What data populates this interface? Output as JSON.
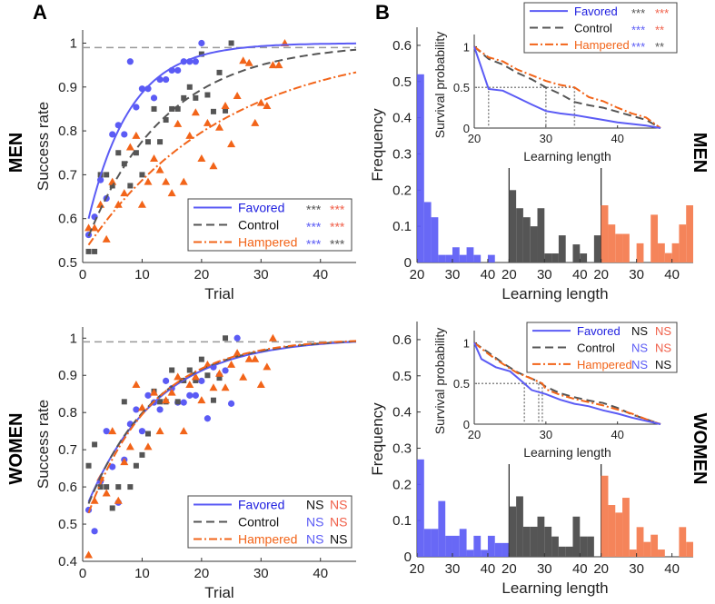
{
  "colors": {
    "favored": "#5b5bf5",
    "favored_text": "#2020e0",
    "control": "#555555",
    "hampered": "#f26419",
    "hampered_hist": "#f5845a",
    "ref_line": "#999999",
    "sig_red": "#f0604a",
    "sig_gray": "#555555"
  },
  "labels": {
    "panel_a": "A",
    "panel_b": "B",
    "men": "MEN",
    "women": "WOMEN"
  },
  "chart_data": [
    {
      "id": "men-success",
      "type": "scatter",
      "title": "",
      "xlabel": "Trial",
      "ylabel": "Success rate",
      "xlim": [
        0,
        46
      ],
      "ylim": [
        0.5,
        1.03
      ],
      "xticks": [
        "0",
        "10",
        "20",
        "30",
        "40"
      ],
      "yticks": [
        "0.5",
        "0.6",
        "0.7",
        "0.8",
        "0.9",
        "1"
      ],
      "reference_line": 0.99,
      "legend_position": "bottom-right",
      "legend": [
        {
          "name": "Favored",
          "sig": [
            "***",
            "***"
          ],
          "sig_colors": [
            "control",
            "hampered"
          ]
        },
        {
          "name": "Control",
          "sig": [
            "***",
            "***"
          ],
          "sig_colors": [
            "favored",
            "hampered"
          ]
        },
        {
          "name": "Hampered",
          "sig": [
            "***",
            "***"
          ],
          "sig_colors": [
            "favored",
            "control"
          ]
        }
      ],
      "series": [
        {
          "name": "Favored",
          "marker": "circle",
          "x": [
            1,
            2,
            3,
            4,
            5,
            6,
            7,
            8,
            9,
            10,
            11,
            12,
            13,
            14,
            15,
            16,
            17,
            18,
            19,
            20
          ],
          "y": [
            0.563,
            0.604,
            0.688,
            0.646,
            0.792,
            0.813,
            0.792,
            0.958,
            0.854,
            0.896,
            0.896,
            0.875,
            0.917,
            0.917,
            0.938,
            0.938,
            0.958,
            0.958,
            0.958,
            1.0
          ],
          "fit": {
            "a": 0.6,
            "k": 0.14,
            "x0": 1
          }
        },
        {
          "name": "Control",
          "marker": "square",
          "x": [
            1,
            2,
            3,
            4,
            5,
            6,
            7,
            8,
            9,
            10,
            11,
            12,
            13,
            14,
            15,
            16,
            17,
            18,
            19,
            20,
            21,
            22,
            23,
            24,
            25
          ],
          "y": [
            0.525,
            0.525,
            0.7,
            0.7,
            0.675,
            0.75,
            0.725,
            0.675,
            0.75,
            0.7,
            0.775,
            0.85,
            0.775,
            0.825,
            0.85,
            0.85,
            0.875,
            0.9,
            0.875,
            0.975,
            0.882,
            0.844,
            0.933,
            0.846,
            1.0
          ],
          "fit": {
            "a": 0.56,
            "k": 0.075,
            "x0": 1
          }
        },
        {
          "name": "Hampered",
          "marker": "triangle",
          "x": [
            1,
            2,
            3,
            4,
            5,
            6,
            7,
            8,
            9,
            10,
            11,
            12,
            13,
            14,
            15,
            16,
            17,
            18,
            19,
            20,
            21,
            22,
            23,
            24,
            25,
            26,
            27,
            28,
            29,
            30,
            31,
            32,
            33,
            34
          ],
          "y": [
            0.579,
            0.579,
            0.632,
            0.553,
            0.684,
            0.632,
            0.658,
            0.763,
            0.789,
            0.632,
            0.684,
            0.737,
            0.711,
            0.684,
            0.658,
            0.816,
            0.684,
            0.789,
            0.842,
            0.737,
            0.818,
            0.72,
            0.808,
            0.857,
            0.77,
            0.88,
            0.96,
            0.955,
            0.818,
            0.864,
            0.857,
            0.95,
            0.95,
            1.0
          ],
          "fit": {
            "a": 0.54,
            "k": 0.043,
            "x0": 1
          }
        }
      ]
    },
    {
      "id": "women-success",
      "type": "scatter",
      "title": "",
      "xlabel": "Trial",
      "ylabel": "Success rate",
      "xlim": [
        0,
        46
      ],
      "ylim": [
        0.4,
        1.03
      ],
      "xticks": [
        "0",
        "10",
        "20",
        "30",
        "40"
      ],
      "yticks": [
        "0.4",
        "0.5",
        "0.6",
        "0.7",
        "0.8",
        "0.9",
        "1"
      ],
      "reference_line": 0.99,
      "legend_position": "bottom-right",
      "legend": [
        {
          "name": "Favored",
          "sig": [
            "NS",
            "NS"
          ],
          "sig_colors": [
            "black",
            "hampered"
          ]
        },
        {
          "name": "Control",
          "sig": [
            "NS",
            "NS"
          ],
          "sig_colors": [
            "favored",
            "hampered"
          ]
        },
        {
          "name": "Hampered",
          "sig": [
            "NS",
            "NS"
          ],
          "sig_colors": [
            "favored",
            "black"
          ]
        }
      ],
      "series": [
        {
          "name": "Favored",
          "marker": "circle",
          "x": [
            1,
            2,
            3,
            4,
            5,
            6,
            7,
            8,
            9,
            10,
            11,
            12,
            13,
            14,
            15,
            16,
            17,
            18,
            19,
            20,
            21,
            22,
            23,
            24,
            25,
            26
          ],
          "y": [
            0.538,
            0.481,
            0.615,
            0.75,
            0.654,
            0.558,
            0.673,
            0.769,
            0.808,
            0.75,
            0.846,
            0.827,
            0.808,
            0.885,
            0.865,
            0.827,
            0.827,
            0.846,
            0.846,
            0.885,
            0.784,
            0.922,
            0.9,
            0.913,
            0.824,
            1.0
          ],
          "fit": {
            "a": 0.56,
            "k": 0.085,
            "x0": 1
          }
        },
        {
          "name": "Control",
          "marker": "square",
          "x": [
            1,
            2,
            3,
            4,
            5,
            6,
            7,
            8,
            9,
            10,
            11,
            12,
            13,
            14,
            15,
            16,
            17,
            18,
            19,
            20,
            21,
            22,
            23,
            24
          ],
          "y": [
            0.657,
            0.714,
            0.6,
            0.6,
            0.543,
            0.6,
            0.829,
            0.6,
            0.657,
            0.686,
            0.743,
            0.857,
            0.829,
            0.829,
            0.914,
            0.829,
            0.886,
            0.914,
            0.886,
            0.943,
            0.9,
            0.833,
            0.893,
            1.0
          ],
          "fit": {
            "a": 0.555,
            "k": 0.088,
            "x0": 1
          }
        },
        {
          "name": "Hampered",
          "marker": "triangle",
          "x": [
            1,
            2,
            3,
            4,
            5,
            6,
            7,
            8,
            9,
            10,
            11,
            12,
            13,
            14,
            15,
            16,
            17,
            18,
            19,
            20,
            21,
            22,
            23,
            24,
            25,
            26,
            27,
            28,
            29,
            30,
            31,
            32
          ],
          "y": [
            0.417,
            0.563,
            0.625,
            0.583,
            0.75,
            0.563,
            0.667,
            0.708,
            0.875,
            0.813,
            0.708,
            0.854,
            0.75,
            0.833,
            0.854,
            0.896,
            0.75,
            0.875,
            0.896,
            0.833,
            0.929,
            0.867,
            0.905,
            0.867,
            0.929,
            0.96,
            0.895,
            0.944,
            0.944,
            0.875,
            0.923,
            1.0
          ],
          "fit": {
            "a": 0.53,
            "k": 0.092,
            "x0": 1
          }
        }
      ]
    },
    {
      "id": "men-histogram",
      "type": "bar",
      "xlabel": "Learning length",
      "ylabel": "Frequency",
      "ylim": [
        0,
        0.65
      ],
      "yticks": [
        "0",
        "0.1",
        "0.2",
        "0.3",
        "0.4",
        "0.5",
        "0.6"
      ],
      "xticks": [
        "20",
        "30",
        "40"
      ],
      "bin_edges": [
        20,
        22,
        24,
        26,
        28,
        30,
        32,
        34,
        36,
        38,
        40,
        42,
        44,
        46
      ],
      "series": [
        {
          "name": "Favored",
          "values": [
            0.52,
            0.167,
            0.125,
            0.021,
            0.021,
            0.042,
            0.021,
            0.042,
            0.021,
            0.0,
            0.021,
            0.0,
            0.0,
            0.0
          ]
        },
        {
          "name": "Control",
          "values": [
            0.2,
            0.15,
            0.125,
            0.1,
            0.15,
            0.025,
            0.025,
            0.075,
            0.0,
            0.05,
            0.025,
            0.0,
            0.075,
            0.0
          ]
        },
        {
          "name": "Hampered",
          "values": [
            0.158,
            0.105,
            0.079,
            0.079,
            0.0,
            0.053,
            0.0,
            0.132,
            0.053,
            0.026,
            0.053,
            0.105,
            0.158,
            0.0
          ]
        }
      ]
    },
    {
      "id": "men-survival",
      "type": "line",
      "xlabel": "Learning length",
      "ylabel": "Survival probability",
      "xlim": [
        20,
        46
      ],
      "ylim": [
        0,
        1.15
      ],
      "xticks": [
        "20",
        "30",
        "40"
      ],
      "yticks": [
        "0",
        "0.5",
        "1"
      ],
      "legend_position": "top-right",
      "legend": [
        {
          "name": "Favored",
          "sig": [
            "***",
            "***"
          ],
          "sig_colors": [
            "control",
            "hampered"
          ]
        },
        {
          "name": "Control",
          "sig": [
            "***",
            "**"
          ],
          "sig_colors": [
            "favored",
            "hampered"
          ]
        },
        {
          "name": "Hampered",
          "sig": [
            "***",
            "**"
          ],
          "sig_colors": [
            "favored",
            "control"
          ]
        }
      ],
      "medians": [
        22,
        30,
        34
      ],
      "series": [
        {
          "name": "Favored",
          "x": [
            20,
            22,
            24,
            26,
            28,
            30,
            32,
            34,
            36,
            38,
            40,
            42,
            44,
            46
          ],
          "y": [
            1.0,
            0.48,
            0.46,
            0.375,
            0.29,
            0.21,
            0.18,
            0.16,
            0.13,
            0.1,
            0.07,
            0.05,
            0.03,
            0.0
          ]
        },
        {
          "name": "Control",
          "x": [
            20,
            22,
            24,
            26,
            28,
            30,
            32,
            34,
            36,
            38,
            40,
            42,
            44,
            46
          ],
          "y": [
            1.0,
            0.85,
            0.78,
            0.68,
            0.6,
            0.5,
            0.42,
            0.32,
            0.28,
            0.25,
            0.2,
            0.15,
            0.1,
            0.0
          ]
        },
        {
          "name": "Hampered",
          "x": [
            20,
            22,
            24,
            26,
            28,
            30,
            32,
            34,
            36,
            38,
            40,
            42,
            44,
            46
          ],
          "y": [
            1.0,
            0.87,
            0.82,
            0.72,
            0.65,
            0.58,
            0.53,
            0.5,
            0.38,
            0.33,
            0.25,
            0.18,
            0.13,
            0.0
          ]
        }
      ]
    },
    {
      "id": "women-histogram",
      "type": "bar",
      "xlabel": "Learning length",
      "ylabel": "Frequency",
      "ylim": [
        0,
        0.65
      ],
      "yticks": [
        "0",
        "0.1",
        "0.2",
        "0.3",
        "0.4",
        "0.5",
        "0.6"
      ],
      "xticks": [
        "20",
        "30",
        "40"
      ],
      "bin_edges": [
        20,
        22,
        24,
        26,
        28,
        30,
        32,
        34,
        36,
        38,
        40,
        42,
        44,
        46
      ],
      "series": [
        {
          "name": "Favored",
          "values": [
            0.269,
            0.077,
            0.077,
            0.154,
            0.058,
            0.058,
            0.077,
            0.019,
            0.058,
            0.019,
            0.058,
            0.038,
            0.038,
            0.0
          ]
        },
        {
          "name": "Control",
          "values": [
            0.139,
            0.167,
            0.083,
            0.083,
            0.111,
            0.083,
            0.056,
            0.028,
            0.028,
            0.111,
            0.056,
            0.056,
            0.0,
            0.0
          ]
        },
        {
          "name": "Hampered",
          "values": [
            0.224,
            0.143,
            0.122,
            0.163,
            0.02,
            0.082,
            0.041,
            0.061,
            0.02,
            0.0,
            0.0,
            0.082,
            0.041,
            0.0
          ]
        }
      ]
    },
    {
      "id": "women-survival",
      "type": "line",
      "xlabel": "Learning length",
      "ylabel": "Survival probability",
      "xlim": [
        20,
        46
      ],
      "ylim": [
        0,
        1.15
      ],
      "xticks": [
        "20",
        "30",
        "40"
      ],
      "yticks": [
        "0",
        "0.5",
        "1"
      ],
      "legend_position": "top-right",
      "legend": [
        {
          "name": "Favored",
          "sig": [
            "NS",
            "NS"
          ],
          "sig_colors": [
            "black",
            "hampered"
          ]
        },
        {
          "name": "Control",
          "sig": [
            "NS",
            "NS"
          ],
          "sig_colors": [
            "favored",
            "hampered"
          ]
        },
        {
          "name": "Hampered",
          "sig": [
            "NS",
            "NS"
          ],
          "sig_colors": [
            "favored",
            "black"
          ]
        }
      ],
      "medians": [
        27,
        29,
        29.5
      ],
      "series": [
        {
          "name": "Favored",
          "x": [
            20,
            21,
            23,
            25,
            27,
            28,
            30,
            32,
            34,
            36,
            38,
            40,
            42,
            44,
            46
          ],
          "y": [
            1.0,
            0.8,
            0.7,
            0.65,
            0.5,
            0.42,
            0.37,
            0.3,
            0.25,
            0.22,
            0.17,
            0.13,
            0.08,
            0.04,
            0.0
          ]
        },
        {
          "name": "Control",
          "x": [
            20,
            22,
            24,
            26,
            28,
            29,
            30,
            32,
            34,
            36,
            38,
            40,
            42,
            44,
            46
          ],
          "y": [
            1.0,
            0.88,
            0.75,
            0.64,
            0.56,
            0.52,
            0.46,
            0.38,
            0.33,
            0.29,
            0.26,
            0.2,
            0.12,
            0.06,
            0.0
          ]
        },
        {
          "name": "Hampered",
          "x": [
            20,
            22,
            24,
            26,
            28,
            29.5,
            30,
            32,
            34,
            36,
            38,
            40,
            42,
            44,
            46
          ],
          "y": [
            1.0,
            0.86,
            0.74,
            0.63,
            0.56,
            0.5,
            0.43,
            0.36,
            0.31,
            0.27,
            0.23,
            0.18,
            0.13,
            0.06,
            0.0
          ]
        }
      ]
    }
  ]
}
